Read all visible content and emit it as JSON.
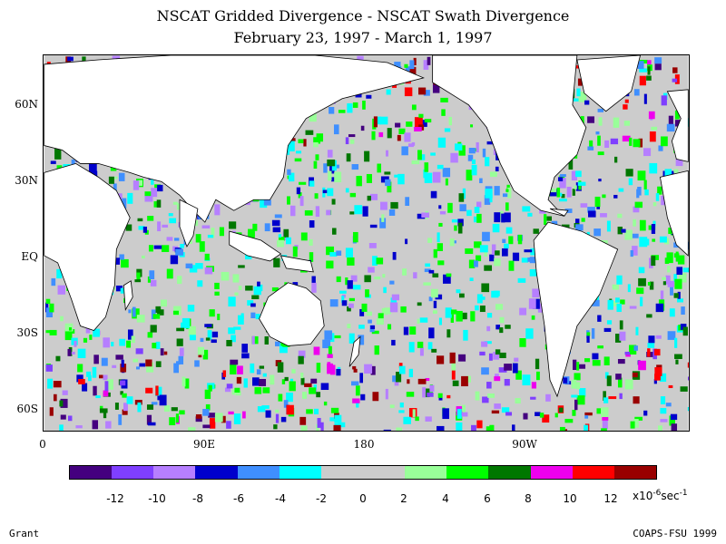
{
  "header": {
    "title": "NSCAT Gridded Divergence - NSCAT Swath Divergence",
    "subtitle": "February 23, 1997 - March 1, 1997"
  },
  "map": {
    "lat_labels": [
      "60N",
      "30N",
      "EQ",
      "30S",
      "60S"
    ],
    "lon_labels": [
      "0",
      "90E",
      "180",
      "90W"
    ],
    "land_color": "#ffffff",
    "missing_color": "#cccccc"
  },
  "colorbar": {
    "colors": [
      "#44007f",
      "#7f3fff",
      "#b67fff",
      "#0000cc",
      "#3f8fff",
      "#00ffff",
      "#cccccc",
      "#cccccc",
      "#99ff99",
      "#00ff00",
      "#007700",
      "#ee00ee",
      "#ff0000",
      "#990000"
    ],
    "tick_labels": [
      "-12",
      "-10",
      "-8",
      "-6",
      "-4",
      "-2",
      "0",
      "2",
      "4",
      "6",
      "8",
      "10",
      "12"
    ],
    "units": {
      "base": "x10",
      "exp": "-6",
      "tail": "sec",
      "tail_exp": "-1"
    }
  },
  "footer": {
    "left": "Grant",
    "right": "COAPS-FSU 1999"
  }
}
